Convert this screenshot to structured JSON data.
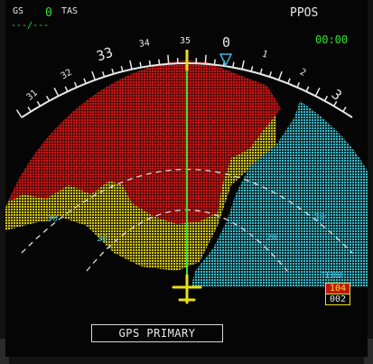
{
  "header": {
    "gs_label": "GS",
    "gs_value": "0",
    "tas_label": "TAS",
    "tas_value": "---/---",
    "mode": "PPOS",
    "time": "00:00"
  },
  "compass": {
    "heading_value": "0",
    "labels": [
      "31",
      "32",
      "33",
      "34",
      "35",
      "0",
      "1",
      "2",
      "3"
    ],
    "range_labels_left": [
      "30",
      "20"
    ],
    "range_labels_right": [
      "30",
      "20"
    ]
  },
  "terrain": {
    "label": "TERR",
    "upper": "104",
    "lower": "002"
  },
  "status": {
    "message": "GPS PRIMARY"
  },
  "colors": {
    "terrain_red": "#c01414",
    "terrain_yellow": "#d8c810",
    "terrain_cyan": "#38b8c8",
    "heading_line": "#2fe52f",
    "aircraft": "#e8e010"
  }
}
